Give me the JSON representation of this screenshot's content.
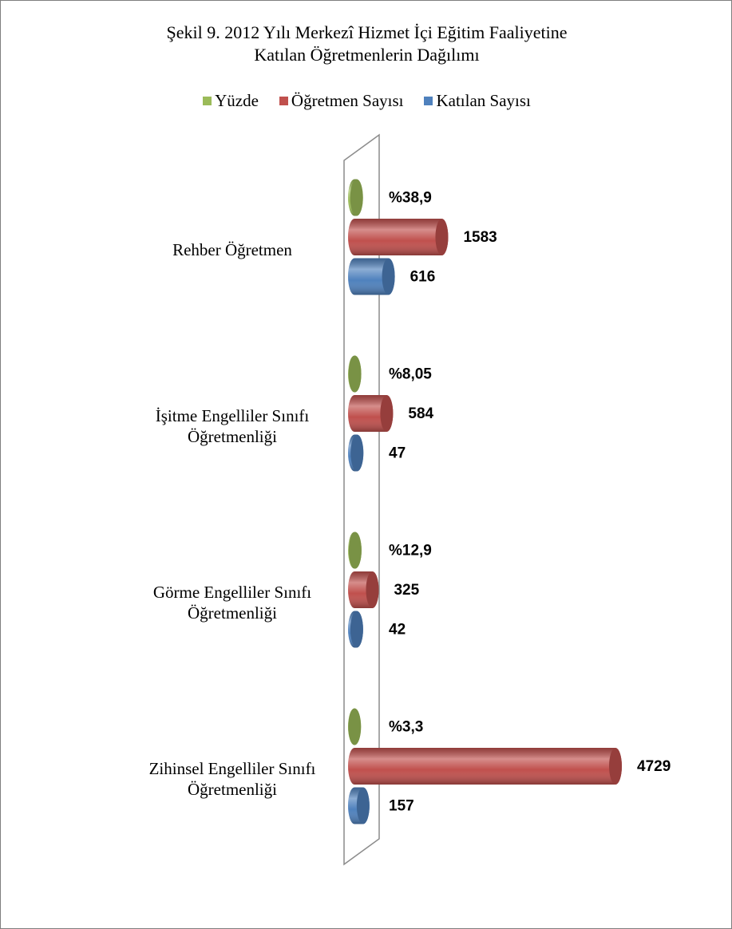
{
  "chart_data": {
    "type": "bar3d",
    "orientation": "horizontal",
    "title": "Şekil  9. 2012 Yılı Merkezî Hizmet İçi Eğitim Faaliyetine\nKatılan Öğretmenlerin Dağılımı",
    "categories": [
      "Rehber Öğretmen",
      "İşitme Engelliler Sınıfı\nÖğretmenliği",
      "Görme Engelliler Sınıfı\nÖğretmenliği",
      "Zihinsel Engelliler Sınıfı\nÖğretmenliği"
    ],
    "series": [
      {
        "name": "Yüzde",
        "color": "#9bbb59",
        "values": [
          38.9,
          8.05,
          12.9,
          3.3
        ],
        "value_labels": [
          "%38,9",
          "%8,05",
          "%12,9",
          "%3,3"
        ]
      },
      {
        "name": "Öğretmen Sayısı",
        "color": "#c0504d",
        "values": [
          1583,
          584,
          325,
          4729
        ]
      },
      {
        "name": "Katılan Sayısı",
        "color": "#4f81bd",
        "values": [
          616,
          47,
          42,
          157
        ]
      }
    ]
  }
}
